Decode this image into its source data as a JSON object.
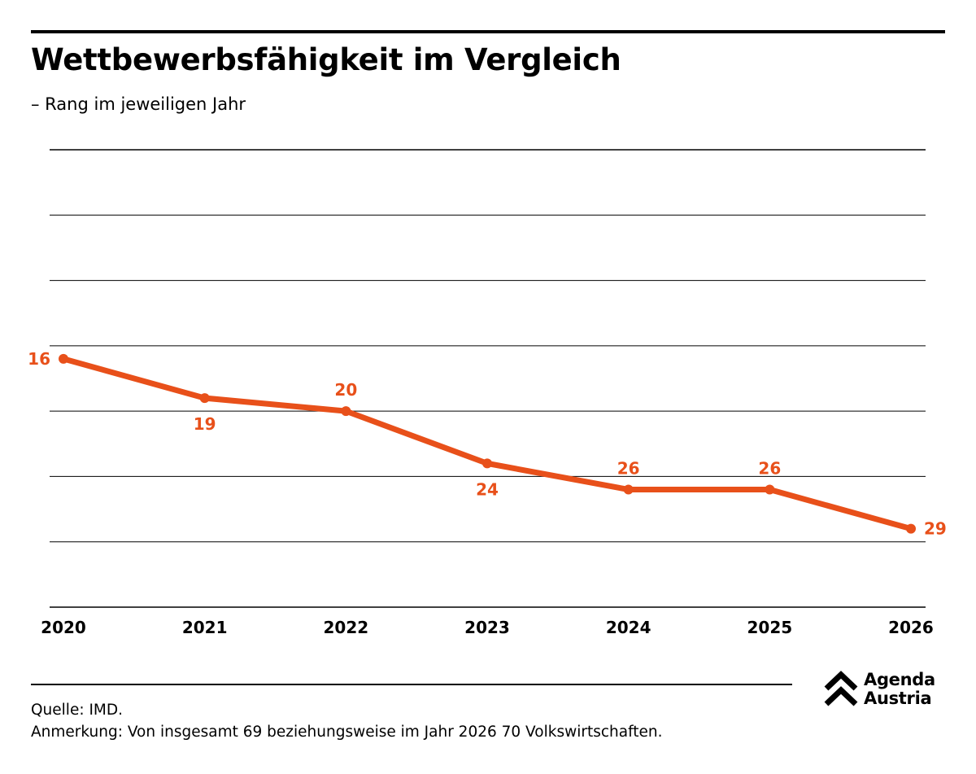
{
  "header": {
    "title": "Wettbewerbsfähigkeit im Vergleich",
    "subtitle": "– Rang im jeweiligen Jahr"
  },
  "colors": {
    "series": "#e8501a",
    "grid": "#000000",
    "text": "#000000"
  },
  "chart_data": {
    "type": "line",
    "title": "Wettbewerbsfähigkeit im Vergleich",
    "subtitle": "– Rang im jeweiligen Jahr",
    "x": [
      "2020",
      "2021",
      "2022",
      "2023",
      "2024",
      "2025",
      "2026"
    ],
    "series": [
      {
        "values": [
          16,
          19,
          20,
          24,
          26,
          26,
          29
        ]
      }
    ],
    "data_labels": [
      "16",
      "19",
      "20",
      "24",
      "26",
      "26",
      "29"
    ],
    "ylim": [
      35,
      0
    ],
    "y_inverted": true,
    "grid": true,
    "legend": "none",
    "xlabel": "",
    "ylabel": ""
  },
  "footer": {
    "source": "Quelle: IMD.",
    "note": "Anmerkung: Von insgesamt 69 beziehungsweise im Jahr 2026 70 Volkswirtschaften."
  },
  "logo": {
    "name": "agenda-austria-logo",
    "line1": "Agenda",
    "line2": "Austria"
  }
}
